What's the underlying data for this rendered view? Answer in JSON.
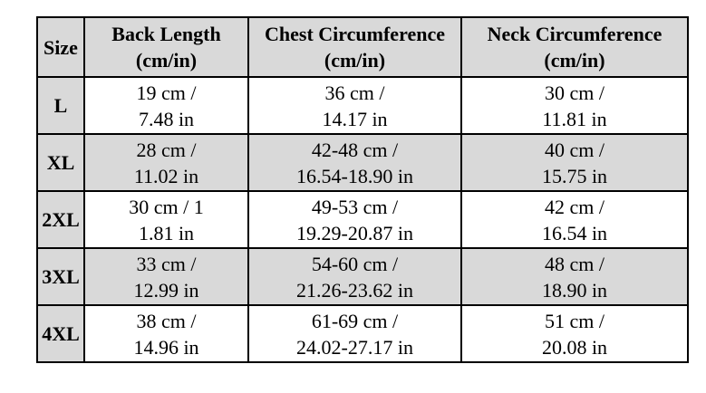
{
  "colors": {
    "header_bg": "#d9d9d9",
    "shaded_bg": "#d9d9d9",
    "border_color": "#000000",
    "text_color": "#000000"
  },
  "table": {
    "headers": [
      {
        "title": "Size",
        "unit": ""
      },
      {
        "title": "Back Length",
        "unit": "(cm/in)"
      },
      {
        "title": "Chest Circumference",
        "unit": "(cm/in)"
      },
      {
        "title": "Neck Circumference",
        "unit": "(cm/in)"
      }
    ],
    "rows": [
      {
        "size": "L",
        "back": [
          "19 cm /",
          "7.48 in"
        ],
        "chest": [
          "36 cm /",
          "14.17 in"
        ],
        "neck": [
          "30 cm /",
          "11.81 in"
        ]
      },
      {
        "size": "XL",
        "back": [
          "28 cm /",
          "11.02 in"
        ],
        "chest": [
          "42-48 cm /",
          "16.54-18.90 in"
        ],
        "neck": [
          "40 cm /",
          "15.75 in"
        ]
      },
      {
        "size": "2XL",
        "back": [
          "30 cm / 1",
          "1.81 in"
        ],
        "chest": [
          "49-53 cm /",
          "19.29-20.87 in"
        ],
        "neck": [
          "42 cm /",
          "16.54 in"
        ]
      },
      {
        "size": "3XL",
        "back": [
          "33 cm /",
          "12.99 in"
        ],
        "chest": [
          "54-60 cm /",
          "21.26-23.62 in"
        ],
        "neck": [
          "48 cm /",
          "18.90 in"
        ]
      },
      {
        "size": "4XL",
        "back": [
          "38 cm /",
          "14.96 in"
        ],
        "chest": [
          "61-69 cm /",
          "24.02-27.17 in"
        ],
        "neck": [
          "51 cm /",
          "20.08 in"
        ]
      }
    ]
  }
}
